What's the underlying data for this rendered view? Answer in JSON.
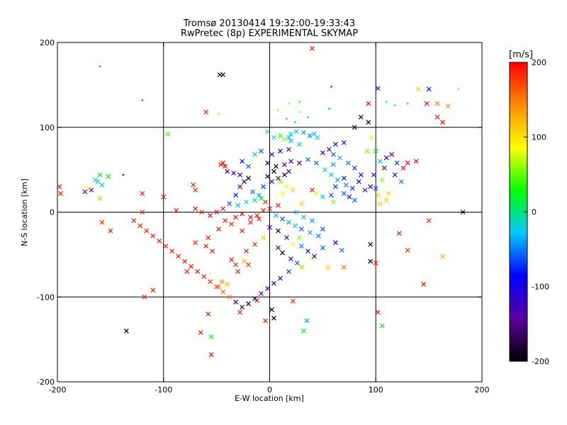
{
  "chart_data": {
    "type": "scatter",
    "title": "Tromsø 20130414 19:32:00-19:33:43",
    "subtitle": "RwPretec (8p) EXPERIMENTAL SKYMAP",
    "xlabel": "E-W location [km]",
    "ylabel": "N-S location [km]",
    "xlim": [
      -200,
      200
    ],
    "ylim": [
      -200,
      200
    ],
    "xticks": [
      -200,
      -100,
      0,
      100,
      200
    ],
    "yticks": [
      -200,
      -100,
      0,
      100,
      200
    ],
    "xtick_labels": [
      "-200",
      "-100",
      "0",
      "100",
      "200"
    ],
    "ytick_labels": [
      "-200",
      "-100",
      "0",
      "100",
      "200"
    ],
    "grid_lines_x": [
      -100,
      0,
      100
    ],
    "grid_lines_y": [
      -100,
      0,
      100
    ],
    "colorbar": {
      "label": "[m/s]",
      "range": [
        -200,
        200
      ],
      "ticks": [
        -200,
        -100,
        0,
        100,
        200
      ],
      "tick_labels": [
        "-200",
        "-100",
        "0",
        "100",
        "200"
      ],
      "colormap": [
        "#000000",
        "#5a00a0",
        "#0000ff",
        "#00c8ff",
        "#00ff00",
        "#ffff00",
        "#ff8c00",
        "#ff0000"
      ]
    },
    "markers": {
      "cross": "x (large detections)",
      "dot": "+ (small detections)"
    },
    "points": [
      [
        40,
        193,
        200,
        "x"
      ],
      [
        -47,
        162,
        -200,
        "x"
      ],
      [
        -44,
        162,
        -200,
        "x"
      ],
      [
        -160,
        172,
        180,
        "+"
      ],
      [
        -60,
        118,
        190,
        "x"
      ],
      [
        -120,
        132,
        -60,
        "+"
      ],
      [
        -48,
        116,
        60,
        "+"
      ],
      [
        -96,
        92,
        40,
        "x"
      ],
      [
        -170,
        28,
        80,
        "x"
      ],
      [
        -164,
        38,
        -30,
        "x"
      ],
      [
        -160,
        44,
        20,
        "x"
      ],
      [
        -152,
        42,
        20,
        "x"
      ],
      [
        -158,
        32,
        -20,
        "x"
      ],
      [
        -174,
        24,
        -120,
        "x"
      ],
      [
        -168,
        26,
        -140,
        "x"
      ],
      [
        -162,
        36,
        10,
        "x"
      ],
      [
        -198,
        30,
        190,
        "x"
      ],
      [
        -197,
        22,
        190,
        "x"
      ],
      [
        -160,
        16,
        60,
        "x"
      ],
      [
        -138,
        44,
        -200,
        "+"
      ],
      [
        -120,
        22,
        190,
        "x"
      ],
      [
        -70,
        26,
        190,
        "x"
      ],
      [
        -72,
        32,
        190,
        "x"
      ],
      [
        -46,
        56,
        200,
        "x"
      ],
      [
        -44,
        58,
        200,
        "x"
      ],
      [
        -42,
        54,
        200,
        "x"
      ],
      [
        -100,
        18,
        190,
        "x"
      ],
      [
        -88,
        2,
        190,
        "x"
      ],
      [
        -120,
        0,
        190,
        "x"
      ],
      [
        -150,
        -22,
        190,
        "x"
      ],
      [
        -158,
        -12,
        190,
        "x"
      ],
      [
        -135,
        -140,
        -200,
        "x"
      ],
      [
        -118,
        -100,
        190,
        "x"
      ],
      [
        -110,
        -92,
        190,
        "x"
      ],
      [
        -78,
        -70,
        190,
        "x"
      ],
      [
        -55,
        -147,
        20,
        "x"
      ],
      [
        -55,
        -168,
        200,
        "x"
      ],
      [
        -58,
        -120,
        190,
        "x"
      ],
      [
        -65,
        -142,
        190,
        "x"
      ],
      [
        -28,
        -118,
        190,
        "x"
      ],
      [
        -40,
        -85,
        120,
        "x"
      ],
      [
        -45,
        -82,
        140,
        "x"
      ],
      [
        -48,
        -88,
        150,
        "x"
      ],
      [
        -30,
        -70,
        190,
        "x"
      ],
      [
        -20,
        -62,
        190,
        "x"
      ],
      [
        -12,
        -104,
        190,
        "x"
      ],
      [
        -4,
        -128,
        190,
        "x"
      ],
      [
        2,
        -115,
        -200,
        "x"
      ],
      [
        4,
        -125,
        -200,
        "x"
      ],
      [
        22,
        -105,
        190,
        "x"
      ],
      [
        32,
        -140,
        20,
        "x"
      ],
      [
        35,
        -128,
        -40,
        "x"
      ],
      [
        102,
        -118,
        200,
        "x"
      ],
      [
        106,
        -134,
        20,
        "x"
      ],
      [
        145,
        -85,
        200,
        "x"
      ],
      [
        163,
        -52,
        120,
        "x"
      ],
      [
        182,
        0,
        -200,
        "x"
      ],
      [
        150,
        -10,
        180,
        "x"
      ],
      [
        122,
        -25,
        190,
        "x"
      ],
      [
        95,
        -38,
        -200,
        "x"
      ],
      [
        130,
        -45,
        190,
        "x"
      ],
      [
        100,
        -60,
        190,
        "x"
      ],
      [
        62,
        -36,
        -90,
        "x"
      ],
      [
        68,
        -45,
        -60,
        "x"
      ],
      [
        12,
        -48,
        -200,
        "x"
      ],
      [
        8,
        -42,
        -150,
        "x"
      ],
      [
        20,
        -55,
        -110,
        "x"
      ],
      [
        30,
        -65,
        60,
        "x"
      ],
      [
        40,
        -55,
        80,
        "x"
      ],
      [
        50,
        -42,
        -60,
        "x"
      ],
      [
        55,
        -65,
        110,
        "x"
      ],
      [
        70,
        -65,
        150,
        "x"
      ],
      [
        95,
        -58,
        -200,
        "x"
      ],
      [
        18,
        88,
        -30,
        "x"
      ],
      [
        20,
        92,
        -30,
        "x"
      ],
      [
        25,
        95,
        -20,
        "x"
      ],
      [
        38,
        90,
        -50,
        "x"
      ],
      [
        32,
        94,
        -40,
        "x"
      ],
      [
        42,
        92,
        -30,
        "x"
      ],
      [
        45,
        88,
        -30,
        "x"
      ],
      [
        -2,
        95,
        -10,
        "x"
      ],
      [
        4,
        88,
        -10,
        "x"
      ],
      [
        10,
        90,
        40,
        "x"
      ],
      [
        14,
        86,
        60,
        "x"
      ],
      [
        28,
        80,
        -30,
        "x"
      ],
      [
        20,
        84,
        -20,
        "x"
      ],
      [
        50,
        70,
        -80,
        "x"
      ],
      [
        60,
        68,
        -60,
        "x"
      ],
      [
        56,
        74,
        -110,
        "x"
      ],
      [
        62,
        80,
        -100,
        "x"
      ],
      [
        70,
        82,
        -120,
        "x"
      ],
      [
        80,
        100,
        -200,
        "x"
      ],
      [
        93,
        106,
        -200,
        "x"
      ],
      [
        86,
        112,
        -200,
        "x"
      ],
      [
        93,
        128,
        200,
        "x"
      ],
      [
        102,
        146,
        -120,
        "x"
      ],
      [
        140,
        145,
        110,
        "x"
      ],
      [
        150,
        145,
        -90,
        "x"
      ],
      [
        158,
        128,
        150,
        "x"
      ],
      [
        158,
        112,
        200,
        "x"
      ],
      [
        148,
        128,
        200,
        "x"
      ],
      [
        168,
        125,
        140,
        "x"
      ],
      [
        163,
        106,
        200,
        "x"
      ],
      [
        178,
        145,
        40,
        "+"
      ],
      [
        130,
        128,
        -30,
        "+"
      ],
      [
        118,
        126,
        -30,
        "+"
      ],
      [
        110,
        130,
        -30,
        "+"
      ],
      [
        58,
        148,
        -80,
        "+"
      ],
      [
        28,
        130,
        20,
        "+"
      ],
      [
        18,
        128,
        60,
        "+"
      ],
      [
        28,
        118,
        60,
        "+"
      ],
      [
        8,
        120,
        60,
        "+"
      ],
      [
        16,
        110,
        -30,
        "+"
      ],
      [
        24,
        106,
        -30,
        "+"
      ],
      [
        36,
        112,
        -10,
        "+"
      ],
      [
        56,
        122,
        -40,
        "+"
      ],
      [
        96,
        88,
        80,
        "x"
      ],
      [
        92,
        72,
        60,
        "x"
      ],
      [
        100,
        72,
        30,
        "x"
      ],
      [
        104,
        60,
        -30,
        "x"
      ],
      [
        108,
        52,
        -120,
        "x"
      ],
      [
        110,
        64,
        -120,
        "x"
      ],
      [
        115,
        68,
        -120,
        "x"
      ],
      [
        120,
        58,
        -70,
        "x"
      ],
      [
        126,
        52,
        200,
        "x"
      ],
      [
        130,
        58,
        200,
        "x"
      ],
      [
        138,
        60,
        200,
        "x"
      ],
      [
        118,
        44,
        -120,
        "x"
      ],
      [
        124,
        36,
        -50,
        "x"
      ],
      [
        106,
        38,
        60,
        "x"
      ],
      [
        98,
        44,
        -80,
        "x"
      ],
      [
        95,
        30,
        -100,
        "x"
      ],
      [
        90,
        26,
        -120,
        "x"
      ],
      [
        100,
        28,
        -60,
        "x"
      ],
      [
        102,
        20,
        110,
        "x"
      ],
      [
        112,
        22,
        110,
        "x"
      ],
      [
        110,
        14,
        110,
        "x"
      ],
      [
        104,
        10,
        110,
        "x"
      ],
      [
        62,
        30,
        -70,
        "x"
      ],
      [
        58,
        20,
        -60,
        "x"
      ],
      [
        50,
        18,
        -10,
        "x"
      ],
      [
        70,
        22,
        -60,
        "x"
      ],
      [
        80,
        14,
        -60,
        "x"
      ],
      [
        75,
        18,
        -80,
        "x"
      ],
      [
        40,
        26,
        200,
        "x"
      ],
      [
        44,
        22,
        80,
        "x"
      ],
      [
        60,
        12,
        60,
        "x"
      ],
      [
        30,
        10,
        110,
        "x"
      ],
      [
        25,
        0,
        -30,
        "x"
      ],
      [
        32,
        -6,
        -30,
        "x"
      ],
      [
        40,
        -10,
        -40,
        "x"
      ],
      [
        50,
        -20,
        -60,
        "x"
      ],
      [
        46,
        -28,
        -50,
        "x"
      ],
      [
        38,
        -24,
        -40,
        "x"
      ],
      [
        28,
        -30,
        60,
        "x"
      ],
      [
        22,
        -38,
        80,
        "x"
      ],
      [
        16,
        -30,
        -150,
        "x"
      ],
      [
        8,
        -22,
        -200,
        "x"
      ],
      [
        0,
        -18,
        -150,
        "x"
      ],
      [
        -6,
        -30,
        110,
        "x"
      ],
      [
        -14,
        -38,
        190,
        "x"
      ],
      [
        -22,
        -46,
        190,
        "x"
      ],
      [
        -24,
        -58,
        120,
        "x"
      ],
      [
        -32,
        -62,
        190,
        "x"
      ],
      [
        -36,
        -56,
        190,
        "x"
      ],
      [
        -54,
        -46,
        190,
        "x"
      ],
      [
        -60,
        -40,
        190,
        "x"
      ],
      [
        -70,
        -36,
        190,
        "x"
      ],
      [
        -58,
        -30,
        190,
        "x"
      ],
      [
        -48,
        -20,
        190,
        "x"
      ],
      [
        -42,
        -10,
        190,
        "x"
      ],
      [
        -36,
        -14,
        190,
        "x"
      ],
      [
        -26,
        -22,
        190,
        "x"
      ],
      [
        -18,
        -12,
        190,
        "x"
      ],
      [
        -12,
        -4,
        190,
        "x"
      ],
      [
        -6,
        2,
        190,
        "x"
      ],
      [
        0,
        4,
        190,
        "x"
      ],
      [
        8,
        8,
        190,
        "x"
      ],
      [
        -4,
        12,
        190,
        "x"
      ],
      [
        -10,
        20,
        -40,
        "x"
      ],
      [
        -16,
        24,
        -60,
        "x"
      ],
      [
        -6,
        30,
        -70,
        "x"
      ],
      [
        2,
        36,
        -80,
        "x"
      ],
      [
        8,
        40,
        -150,
        "x"
      ],
      [
        14,
        44,
        -200,
        "x"
      ],
      [
        18,
        48,
        -120,
        "x"
      ],
      [
        4,
        48,
        -200,
        "x"
      ],
      [
        -2,
        42,
        -200,
        "x"
      ],
      [
        10,
        36,
        60,
        "x"
      ],
      [
        16,
        30,
        90,
        "x"
      ],
      [
        22,
        26,
        110,
        "x"
      ],
      [
        12,
        22,
        90,
        "x"
      ],
      [
        -20,
        40,
        -200,
        "x"
      ],
      [
        -24,
        36,
        -160,
        "x"
      ],
      [
        -28,
        30,
        -120,
        "x"
      ],
      [
        -32,
        20,
        -80,
        "x"
      ],
      [
        -38,
        10,
        -60,
        "x"
      ],
      [
        -30,
        8,
        -30,
        "x"
      ],
      [
        -22,
        12,
        -20,
        "x"
      ],
      [
        -14,
        14,
        0,
        "x"
      ],
      [
        -8,
        16,
        20,
        "x"
      ],
      [
        -44,
        4,
        190,
        "x"
      ],
      [
        -50,
        0,
        200,
        "x"
      ],
      [
        -56,
        -4,
        200,
        "x"
      ],
      [
        -64,
        0,
        190,
        "x"
      ],
      [
        -70,
        4,
        190,
        "x"
      ],
      [
        -26,
        -2,
        200,
        "x"
      ],
      [
        -32,
        -6,
        200,
        "x"
      ],
      [
        -18,
        -6,
        200,
        "x"
      ],
      [
        -10,
        -8,
        190,
        "x"
      ],
      [
        6,
        -4,
        -30,
        "x"
      ],
      [
        12,
        -8,
        -60,
        "x"
      ],
      [
        18,
        -12,
        -40,
        "x"
      ],
      [
        24,
        -16,
        -20,
        "x"
      ],
      [
        30,
        -20,
        -60,
        "x"
      ],
      [
        -28,
        44,
        -130,
        "x"
      ],
      [
        -34,
        46,
        -120,
        "x"
      ],
      [
        -40,
        48,
        -100,
        "x"
      ],
      [
        14,
        56,
        -140,
        "x"
      ],
      [
        6,
        54,
        -200,
        "x"
      ],
      [
        -2,
        58,
        -180,
        "x"
      ],
      [
        20,
        60,
        -120,
        "x"
      ],
      [
        28,
        58,
        -100,
        "x"
      ],
      [
        -14,
        68,
        -20,
        "x"
      ],
      [
        -8,
        72,
        -60,
        "x"
      ],
      [
        2,
        68,
        -80,
        "x"
      ],
      [
        10,
        72,
        -100,
        "x"
      ],
      [
        18,
        74,
        -130,
        "x"
      ],
      [
        -26,
        60,
        -80,
        "x"
      ],
      [
        -20,
        54,
        -60,
        "x"
      ],
      [
        36,
        62,
        -60,
        "x"
      ],
      [
        44,
        58,
        -60,
        "x"
      ],
      [
        52,
        50,
        -30,
        "x"
      ],
      [
        58,
        44,
        -20,
        "x"
      ],
      [
        64,
        38,
        -40,
        "x"
      ],
      [
        70,
        40,
        -80,
        "x"
      ],
      [
        72,
        32,
        -50,
        "x"
      ],
      [
        78,
        28,
        -70,
        "x"
      ],
      [
        84,
        36,
        -90,
        "x"
      ],
      [
        86,
        44,
        -110,
        "x"
      ],
      [
        80,
        52,
        -70,
        "x"
      ],
      [
        74,
        58,
        -50,
        "x"
      ],
      [
        66,
        64,
        -30,
        "x"
      ],
      [
        60,
        56,
        -40,
        "x"
      ],
      [
        30,
        -40,
        -50,
        "x"
      ],
      [
        36,
        -46,
        -80,
        "x"
      ],
      [
        42,
        -52,
        -100,
        "x"
      ],
      [
        26,
        -60,
        -60,
        "x"
      ],
      [
        18,
        -70,
        -70,
        "x"
      ],
      [
        10,
        -78,
        -90,
        "x"
      ],
      [
        4,
        -84,
        -110,
        "x"
      ],
      [
        -2,
        -90,
        -130,
        "x"
      ],
      [
        -8,
        -96,
        -150,
        "x"
      ],
      [
        -14,
        -102,
        -170,
        "x"
      ],
      [
        -20,
        -108,
        -190,
        "x"
      ],
      [
        -26,
        -112,
        -180,
        "x"
      ],
      [
        -32,
        -106,
        -160,
        "x"
      ],
      [
        -38,
        -100,
        150,
        "x"
      ],
      [
        -44,
        -94,
        160,
        "x"
      ],
      [
        -50,
        -88,
        170,
        "x"
      ],
      [
        -56,
        -82,
        180,
        "x"
      ],
      [
        -62,
        -76,
        190,
        "x"
      ],
      [
        -68,
        -70,
        190,
        "x"
      ],
      [
        -74,
        -64,
        190,
        "x"
      ],
      [
        -80,
        -58,
        190,
        "x"
      ],
      [
        -86,
        -52,
        190,
        "x"
      ],
      [
        -92,
        -46,
        190,
        "x"
      ],
      [
        -98,
        -40,
        190,
        "x"
      ],
      [
        -104,
        -34,
        190,
        "x"
      ],
      [
        -110,
        -28,
        190,
        "x"
      ],
      [
        -116,
        -22,
        190,
        "x"
      ],
      [
        -122,
        -16,
        190,
        "x"
      ],
      [
        -128,
        -10,
        190,
        "x"
      ]
    ]
  }
}
